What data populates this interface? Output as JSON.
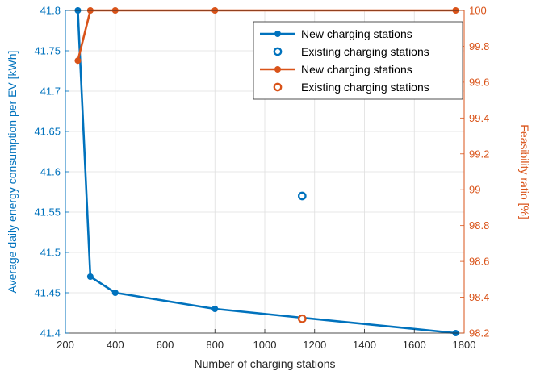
{
  "chart_data": {
    "type": "line",
    "xlabel": "Number of charging stations",
    "xlim": [
      200,
      1800
    ],
    "xticks": [
      200,
      400,
      600,
      800,
      1000,
      1200,
      1400,
      1600,
      1800
    ],
    "grid": true,
    "legend_position": "top-right",
    "left_axis": {
      "label": "Average daily energy consumption per EV [kWh]",
      "ylim": [
        41.4,
        41.8
      ],
      "ticks": [
        "41.4",
        "41.45",
        "41.5",
        "41.55",
        "41.6",
        "41.65",
        "41.7",
        "41.75",
        "41.8"
      ],
      "color": "#0072BD"
    },
    "right_axis": {
      "label": "Feasibility ratio [%]",
      "ylim": [
        98.2,
        100
      ],
      "ticks": [
        "98.2",
        "98.4",
        "98.6",
        "98.8",
        "99",
        "99.2",
        "99.4",
        "99.6",
        "99.8",
        "100"
      ],
      "color": "#D95319"
    },
    "series": [
      {
        "name": "New charging stations",
        "axis": "left",
        "style": "line-marker",
        "color": "#0072BD",
        "x": [
          250,
          300,
          400,
          800,
          1150,
          1766
        ],
        "y": [
          41.8,
          41.47,
          41.45,
          41.43,
          41.419,
          41.4
        ]
      },
      {
        "name": "Existing charging stations",
        "axis": "left",
        "style": "open-marker",
        "color": "#0072BD",
        "x": [
          1150
        ],
        "y": [
          41.57
        ]
      },
      {
        "name": "New charging stations",
        "axis": "right",
        "style": "line-marker",
        "color": "#D95319",
        "x": [
          250,
          300,
          400,
          800,
          1766
        ],
        "y": [
          99.72,
          100,
          100,
          100,
          100
        ]
      },
      {
        "name": "Existing charging stations",
        "axis": "right",
        "style": "open-marker",
        "color": "#D95319",
        "x": [
          1150
        ],
        "y": [
          98.28
        ]
      }
    ]
  }
}
